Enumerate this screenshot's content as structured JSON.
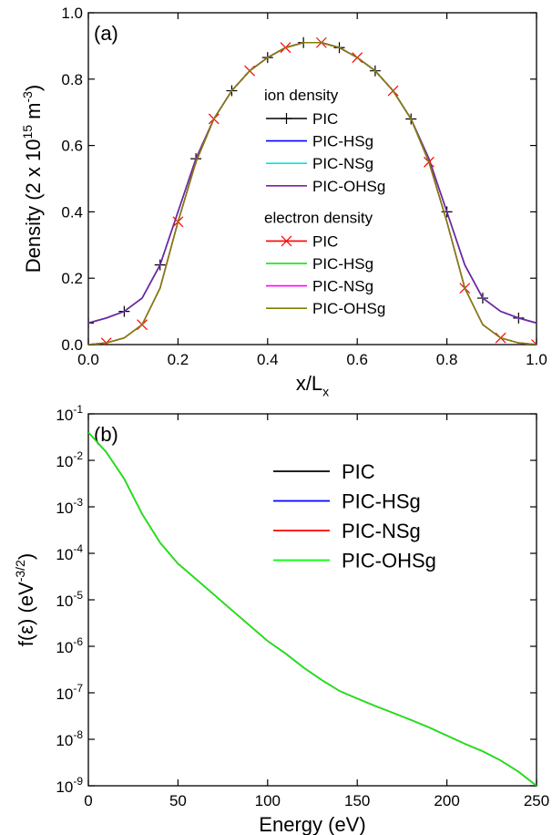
{
  "chart_data": [
    {
      "type": "line",
      "annotation": "(a)",
      "xlabel": [
        {
          "text": "x/L"
        },
        {
          "sub": "x"
        }
      ],
      "ylabel": [
        {
          "text": "Density (2 x 10"
        },
        {
          "sup": "15"
        },
        {
          "text": " m"
        },
        {
          "sup": "-3"
        },
        {
          "text": ")"
        }
      ],
      "xlim": [
        0,
        1
      ],
      "ylim": [
        0,
        1
      ],
      "xticks": [
        {
          "value": 0,
          "label": "0.0"
        },
        {
          "value": 0.2,
          "label": "0.2"
        },
        {
          "value": 0.4,
          "label": "0.4"
        },
        {
          "value": 0.6,
          "label": "0.6"
        },
        {
          "value": 0.8,
          "label": "0.8"
        },
        {
          "value": 1,
          "label": "1.0"
        }
      ],
      "yticks": [
        {
          "value": 0,
          "label": "0.0"
        },
        {
          "value": 0.2,
          "label": "0.2"
        },
        {
          "value": 0.4,
          "label": "0.4"
        },
        {
          "value": 0.6,
          "label": "0.6"
        },
        {
          "value": 0.8,
          "label": "0.8"
        },
        {
          "value": 1,
          "label": "1.0"
        }
      ],
      "legend_groups": [
        "ion density",
        "electron density"
      ],
      "x": [
        0,
        0.04,
        0.08,
        0.12,
        0.16,
        0.2,
        0.24,
        0.28,
        0.32,
        0.36,
        0.4,
        0.44,
        0.48,
        0.52,
        0.56,
        0.6,
        0.64,
        0.68,
        0.72,
        0.76,
        0.8,
        0.84,
        0.88,
        0.92,
        0.96,
        1.0
      ],
      "series": [
        {
          "name": "PIC",
          "group": 0,
          "color": "#000000",
          "marker": "+",
          "values": [
            0.065,
            0.08,
            0.1,
            0.14,
            0.24,
            0.4,
            0.56,
            0.68,
            0.765,
            0.825,
            0.865,
            0.895,
            0.91,
            0.91,
            0.895,
            0.865,
            0.825,
            0.765,
            0.68,
            0.56,
            0.4,
            0.24,
            0.14,
            0.1,
            0.08,
            0.065
          ]
        },
        {
          "name": "PIC-HSg",
          "group": 0,
          "color": "#0000ff",
          "values": [
            0.065,
            0.08,
            0.1,
            0.14,
            0.24,
            0.4,
            0.56,
            0.68,
            0.765,
            0.825,
            0.865,
            0.895,
            0.91,
            0.91,
            0.895,
            0.865,
            0.825,
            0.765,
            0.68,
            0.56,
            0.4,
            0.24,
            0.14,
            0.1,
            0.08,
            0.065
          ]
        },
        {
          "name": "PIC-NSg",
          "group": 0,
          "color": "#00e5e5",
          "values": [
            0.065,
            0.08,
            0.1,
            0.14,
            0.24,
            0.4,
            0.56,
            0.68,
            0.765,
            0.825,
            0.865,
            0.895,
            0.91,
            0.91,
            0.895,
            0.865,
            0.825,
            0.765,
            0.68,
            0.56,
            0.4,
            0.24,
            0.14,
            0.1,
            0.08,
            0.065
          ]
        },
        {
          "name": "PIC-OHSg",
          "group": 0,
          "color": "#7f1f9f",
          "values": [
            0.065,
            0.08,
            0.1,
            0.14,
            0.24,
            0.4,
            0.56,
            0.68,
            0.765,
            0.825,
            0.865,
            0.895,
            0.91,
            0.91,
            0.895,
            0.865,
            0.825,
            0.765,
            0.68,
            0.56,
            0.4,
            0.24,
            0.14,
            0.1,
            0.08,
            0.065
          ]
        },
        {
          "name": "PIC",
          "group": 1,
          "color": "#ff0000",
          "marker": "x",
          "values": [
            0,
            0.005,
            0.02,
            0.06,
            0.17,
            0.37,
            0.55,
            0.68,
            0.765,
            0.825,
            0.865,
            0.895,
            0.91,
            0.91,
            0.895,
            0.865,
            0.825,
            0.765,
            0.68,
            0.55,
            0.37,
            0.17,
            0.06,
            0.02,
            0.005,
            0
          ]
        },
        {
          "name": "PIC-HSg",
          "group": 1,
          "color": "#00e000",
          "values": [
            0,
            0.005,
            0.02,
            0.06,
            0.17,
            0.37,
            0.55,
            0.68,
            0.765,
            0.825,
            0.865,
            0.895,
            0.91,
            0.91,
            0.895,
            0.865,
            0.825,
            0.765,
            0.68,
            0.55,
            0.37,
            0.17,
            0.06,
            0.02,
            0.005,
            0
          ]
        },
        {
          "name": "PIC-NSg",
          "group": 1,
          "color": "#ff00ff",
          "values": [
            0,
            0.005,
            0.02,
            0.06,
            0.17,
            0.37,
            0.55,
            0.68,
            0.765,
            0.825,
            0.865,
            0.895,
            0.91,
            0.91,
            0.895,
            0.865,
            0.825,
            0.765,
            0.68,
            0.55,
            0.37,
            0.17,
            0.06,
            0.02,
            0.005,
            0
          ]
        },
        {
          "name": "PIC-OHSg",
          "group": 1,
          "color": "#808000",
          "values": [
            0,
            0.005,
            0.02,
            0.06,
            0.17,
            0.37,
            0.55,
            0.68,
            0.765,
            0.825,
            0.865,
            0.895,
            0.91,
            0.91,
            0.895,
            0.865,
            0.825,
            0.765,
            0.68,
            0.55,
            0.37,
            0.17,
            0.06,
            0.02,
            0.005,
            0
          ]
        }
      ]
    },
    {
      "type": "line",
      "annotation": "(b)",
      "log_y": true,
      "xlabel": [
        {
          "text": "Energy (eV)"
        }
      ],
      "ylabel": [
        {
          "text": "f(ε) (eV"
        },
        {
          "sup": "-3/2"
        },
        {
          "text": ")"
        }
      ],
      "xlim": [
        0,
        250
      ],
      "ylim": [
        1e-09,
        0.1
      ],
      "xticks": [
        0,
        50,
        100,
        150,
        200,
        250
      ],
      "yticks": [
        {
          "value": 1e-09,
          "label": [
            "10",
            "-9"
          ]
        },
        {
          "value": 1e-08,
          "label": [
            "10",
            "-8"
          ]
        },
        {
          "value": 1e-07,
          "label": [
            "10",
            "-7"
          ]
        },
        {
          "value": 1e-06,
          "label": [
            "10",
            "-6"
          ]
        },
        {
          "value": 1e-05,
          "label": [
            "10",
            "-5"
          ]
        },
        {
          "value": 0.0001,
          "label": [
            "10",
            "-4"
          ]
        },
        {
          "value": 0.001,
          "label": [
            "10",
            "-3"
          ]
        },
        {
          "value": 0.01,
          "label": [
            "10",
            "-2"
          ]
        },
        {
          "value": 0.1,
          "label": [
            "10",
            "-1"
          ]
        }
      ],
      "x": [
        0,
        10,
        20,
        30,
        40,
        50,
        60,
        70,
        80,
        90,
        100,
        110,
        120,
        130,
        140,
        150,
        160,
        170,
        180,
        190,
        200,
        210,
        220,
        230,
        240,
        250
      ],
      "series": [
        {
          "name": "PIC",
          "color": "#000000",
          "values": [
            0.04,
            0.015,
            0.004,
            0.0007,
            0.00017,
            6e-05,
            2.8e-05,
            1.3e-05,
            6e-06,
            2.8e-06,
            1.3e-06,
            7e-07,
            3.5e-07,
            1.9e-07,
            1.1e-07,
            7.5e-08,
            5.2e-08,
            3.7e-08,
            2.6e-08,
            1.8e-08,
            1.2e-08,
            8e-09,
            5.5e-09,
            3.5e-09,
            2e-09,
            1e-09
          ]
        },
        {
          "name": "PIC-HSg",
          "color": "#0000ff",
          "values": [
            0.04,
            0.015,
            0.004,
            0.0007,
            0.00017,
            6e-05,
            2.8e-05,
            1.3e-05,
            6e-06,
            2.8e-06,
            1.3e-06,
            7e-07,
            3.5e-07,
            1.9e-07,
            1.1e-07,
            7.5e-08,
            5.2e-08,
            3.7e-08,
            2.6e-08,
            1.8e-08,
            1.2e-08,
            8e-09,
            5.5e-09,
            3.5e-09,
            2e-09,
            1e-09
          ]
        },
        {
          "name": "PIC-NSg",
          "color": "#ff0000",
          "values": [
            0.04,
            0.015,
            0.004,
            0.0007,
            0.00017,
            6e-05,
            2.8e-05,
            1.3e-05,
            6e-06,
            2.8e-06,
            1.3e-06,
            7e-07,
            3.5e-07,
            1.9e-07,
            1.1e-07,
            7.5e-08,
            5.2e-08,
            3.7e-08,
            2.6e-08,
            1.8e-08,
            1.2e-08,
            8e-09,
            5.5e-09,
            3.5e-09,
            2e-09,
            1e-09
          ]
        },
        {
          "name": "PIC-OHSg",
          "color": "#00ff00",
          "values": [
            0.04,
            0.015,
            0.004,
            0.0007,
            0.00017,
            6e-05,
            2.8e-05,
            1.3e-05,
            6e-06,
            2.8e-06,
            1.3e-06,
            7e-07,
            3.5e-07,
            1.9e-07,
            1.1e-07,
            7.5e-08,
            5.2e-08,
            3.7e-08,
            2.6e-08,
            1.8e-08,
            1.2e-08,
            8e-09,
            5.5e-09,
            3.5e-09,
            2e-09,
            1e-09
          ]
        }
      ]
    }
  ]
}
